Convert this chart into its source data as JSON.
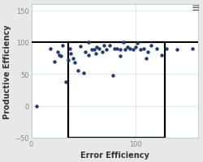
{
  "title": "",
  "xlabel": "Error Efficiency",
  "ylabel": "Productive Efficiency",
  "xlim": [
    0,
    160
  ],
  "ylim": [
    -50,
    160
  ],
  "xticks": [
    0,
    100
  ],
  "yticks": [
    -50,
    0,
    50,
    100,
    150
  ],
  "background_color": "#e8e8e8",
  "plot_bg": "#ffffff",
  "dot_color": "#1e3a6e",
  "dot_size": 10,
  "region_x1": 35,
  "region_x2": 128,
  "region_y1": -50,
  "region_y2": 100,
  "hline_y": 100,
  "scatter_x": [
    5,
    18,
    22,
    25,
    27,
    28,
    30,
    33,
    35,
    37,
    38,
    40,
    42,
    45,
    47,
    50,
    52,
    55,
    55,
    58,
    60,
    62,
    63,
    65,
    68,
    70,
    72,
    75,
    78,
    80,
    82,
    85,
    85,
    88,
    90,
    92,
    95,
    98,
    100,
    102,
    105,
    108,
    110,
    112,
    115,
    120,
    125,
    130,
    140,
    155
  ],
  "scatter_y": [
    0,
    90,
    70,
    85,
    80,
    78,
    95,
    38,
    72,
    90,
    82,
    75,
    68,
    55,
    93,
    52,
    85,
    100,
    80,
    88,
    88,
    82,
    92,
    90,
    85,
    95,
    88,
    95,
    48,
    90,
    90,
    88,
    78,
    100,
    88,
    92,
    90,
    88,
    92,
    98,
    88,
    90,
    75,
    85,
    95,
    90,
    80,
    90,
    88,
    90
  ],
  "grid_color": "#d0dce8",
  "tick_color": "#888888",
  "label_color": "#333333",
  "spine_color": "#c0ccd8",
  "menu_color": "#555555"
}
